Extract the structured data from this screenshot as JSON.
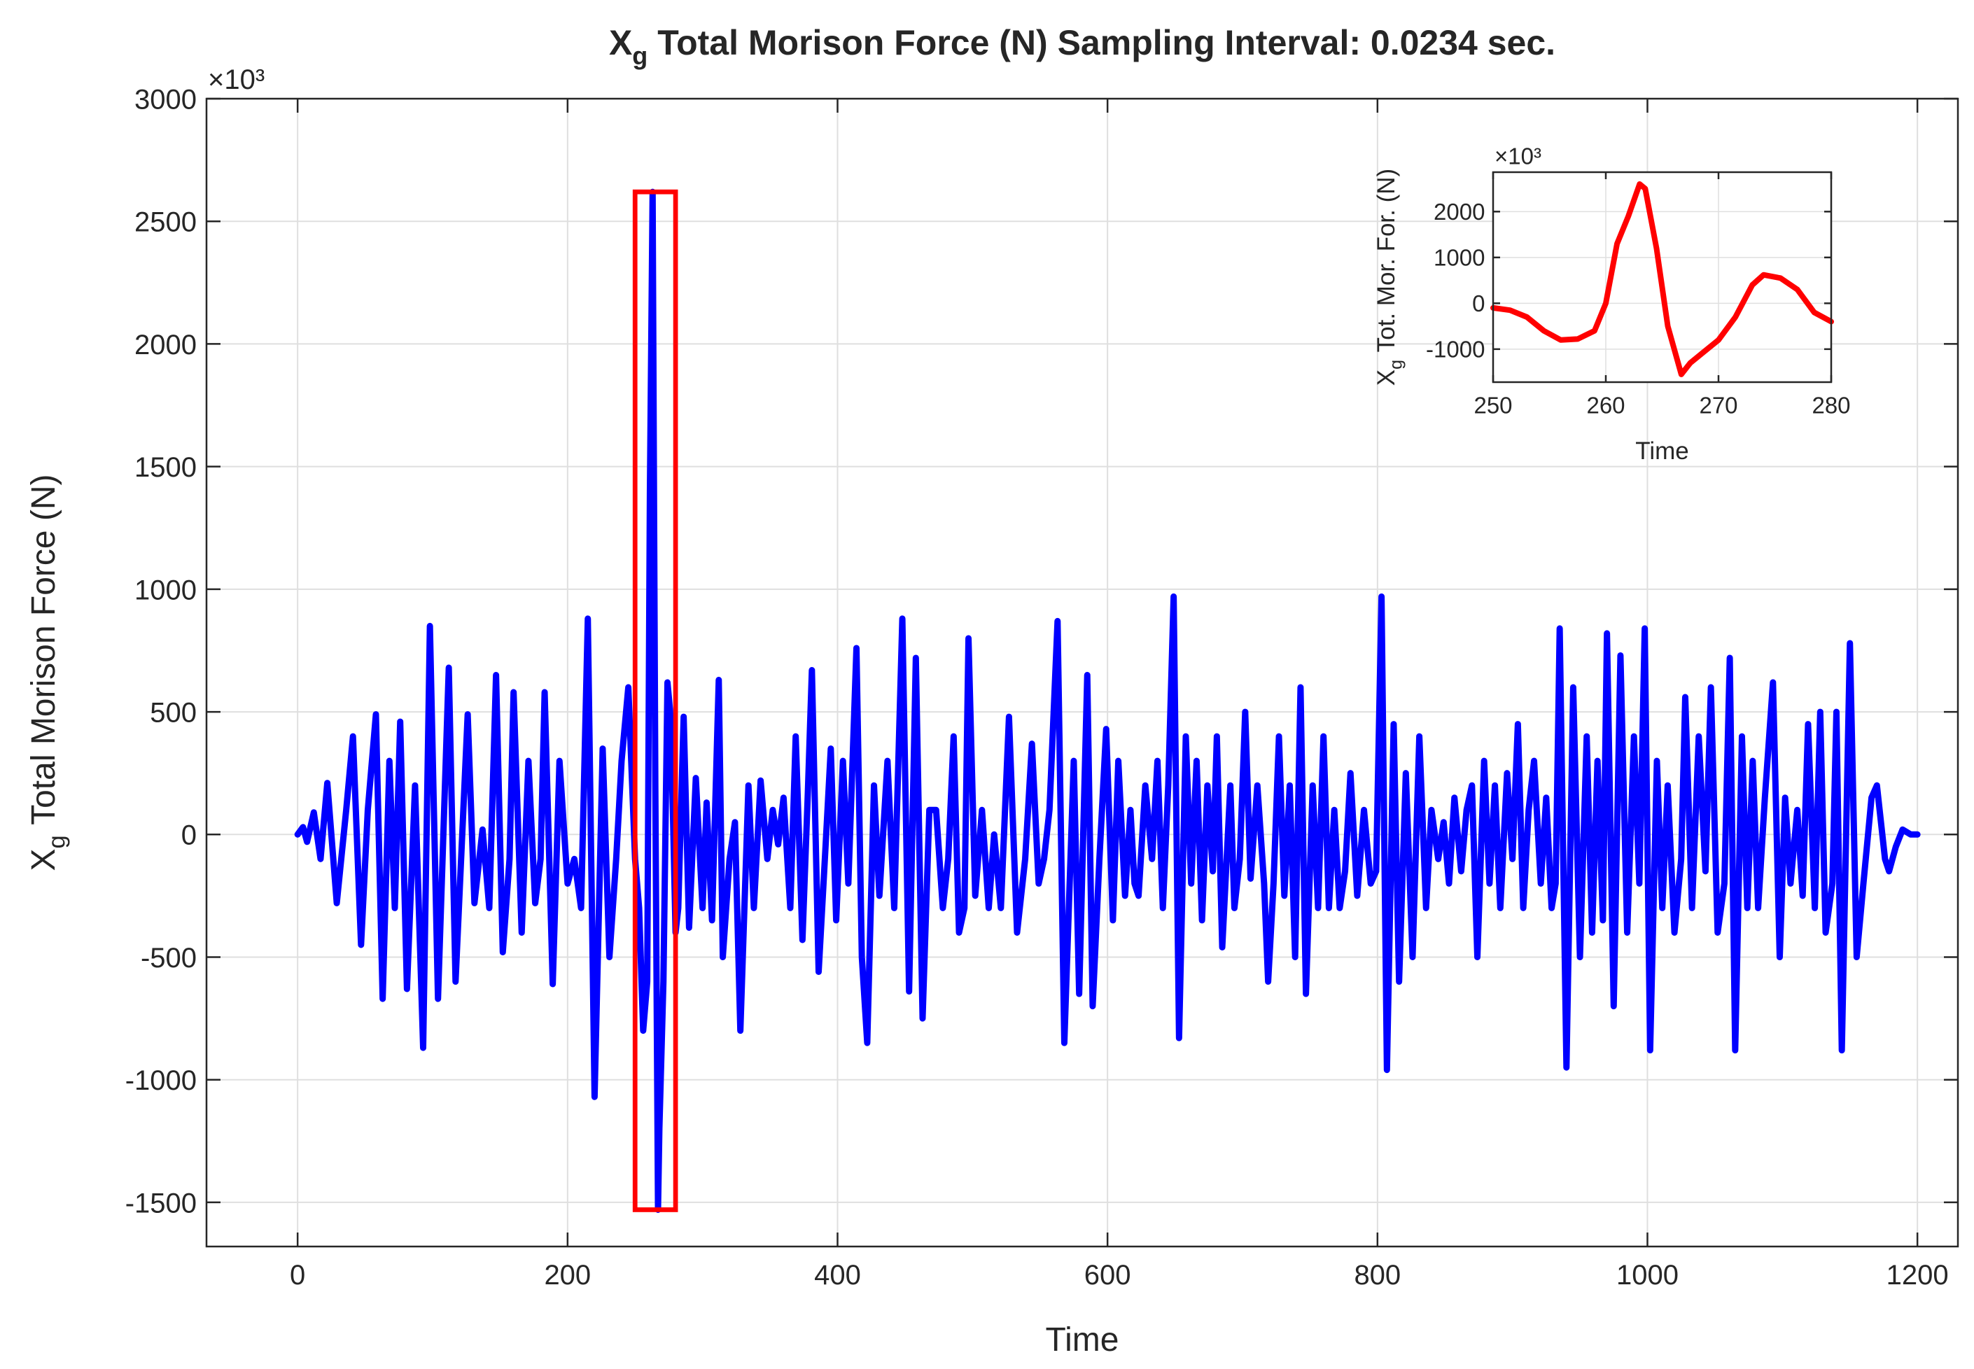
{
  "chart_data": [
    {
      "type": "line",
      "title_symbol": "X",
      "title_subscript": "g",
      "title": "Total Morison Force (N) Sampling Interval: 0.0234 sec.",
      "xlabel": "Time",
      "ylabel_symbol": "X",
      "ylabel_subscript": "g",
      "ylabel": "Total Morison Force (N)",
      "y_multiplier": "×10³",
      "xlim": [
        -67.5,
        1230
      ],
      "ylim": [
        -1680,
        3000
      ],
      "xticks": [
        0,
        200,
        400,
        600,
        800,
        1000,
        1200
      ],
      "yticks": [
        -1500,
        -1000,
        -500,
        0,
        500,
        1000,
        1500,
        2000,
        2500,
        3000
      ],
      "grid": true,
      "series": [
        {
          "color": "#0000ff",
          "x": [
            0,
            4,
            7,
            12,
            17,
            22,
            29,
            36,
            41,
            47,
            52,
            58,
            63,
            68,
            72,
            76,
            81,
            87,
            93,
            98,
            104,
            112,
            117,
            126,
            131,
            137,
            142,
            147,
            152,
            157,
            160,
            166,
            171,
            176,
            180,
            183,
            189,
            194,
            200,
            205,
            210,
            215,
            220,
            226,
            231,
            236,
            240,
            245,
            250,
            253,
            256,
            259,
            261,
            263,
            265,
            267,
            268,
            271,
            274,
            276,
            278,
            280,
            282,
            286,
            290,
            295,
            300,
            303,
            307,
            312,
            315,
            320,
            324,
            328,
            334,
            338,
            343,
            348,
            352,
            356,
            360,
            365,
            369,
            374,
            378,
            381,
            386,
            391,
            395,
            399,
            404,
            408,
            414,
            418,
            422,
            427,
            431,
            437,
            442,
            448,
            453,
            458,
            463,
            468,
            473,
            478,
            482,
            486,
            490,
            494,
            497,
            502,
            507,
            512,
            516,
            521,
            527,
            533,
            539,
            544,
            549,
            553,
            557,
            563,
            568,
            575,
            579,
            585,
            589,
            594,
            599,
            604,
            608,
            613,
            617,
            620,
            623,
            628,
            633,
            637,
            641,
            645,
            649,
            653,
            658,
            662,
            666,
            670,
            674,
            678,
            681,
            685,
            691,
            694,
            698,
            702,
            706,
            711,
            716,
            719,
            723,
            727,
            731,
            735,
            739,
            743,
            747,
            752,
            756,
            760,
            764,
            768,
            772,
            776,
            780,
            785,
            790,
            795,
            799,
            803,
            807,
            812,
            816,
            821,
            826,
            831,
            836,
            840,
            845,
            849,
            853,
            857,
            862,
            866,
            870,
            874,
            879,
            883,
            887,
            891,
            896,
            900,
            904,
            908,
            912,
            916,
            921,
            925,
            929,
            932,
            935,
            940,
            945,
            950,
            955,
            959,
            963,
            967,
            970,
            975,
            980,
            985,
            990,
            994,
            998,
            1002,
            1007,
            1011,
            1015,
            1020,
            1025,
            1028,
            1033,
            1038,
            1043,
            1047,
            1052,
            1057,
            1061,
            1065,
            1070,
            1074,
            1078,
            1082,
            1087,
            1093,
            1098,
            1102,
            1106,
            1111,
            1115,
            1119,
            1124,
            1128,
            1132,
            1137,
            1140,
            1144,
            1150,
            1155,
            1160,
            1166,
            1170,
            1176,
            1179,
            1184,
            1189,
            1195,
            1200
          ],
          "values": [
            0,
            30,
            -30,
            90,
            -100,
            210,
            -280,
            100,
            400,
            -450,
            100,
            490,
            -670,
            300,
            -300,
            460,
            -630,
            200,
            -870,
            850,
            -670,
            680,
            -600,
            490,
            -280,
            20,
            -300,
            650,
            -480,
            -100,
            580,
            -400,
            300,
            -280,
            -100,
            580,
            -610,
            300,
            -200,
            -100,
            -300,
            880,
            -1070,
            350,
            -500,
            -100,
            300,
            600,
            -100,
            -300,
            -800,
            -600,
            1400,
            2620,
            200,
            -1530,
            -1200,
            -600,
            620,
            500,
            100,
            -400,
            -300,
            480,
            -380,
            230,
            -300,
            130,
            -350,
            630,
            -500,
            -100,
            50,
            -800,
            200,
            -300,
            220,
            -100,
            100,
            -40,
            150,
            -300,
            400,
            -430,
            170,
            670,
            -560,
            -60,
            350,
            -350,
            300,
            -200,
            760,
            -500,
            -850,
            200,
            -250,
            300,
            -300,
            880,
            -640,
            720,
            -750,
            100,
            100,
            -300,
            -100,
            400,
            -400,
            -300,
            800,
            -250,
            100,
            -300,
            0,
            -300,
            480,
            -400,
            -100,
            370,
            -200,
            -100,
            100,
            870,
            -850,
            300,
            -650,
            650,
            -700,
            -100,
            430,
            -350,
            300,
            -250,
            100,
            -200,
            -250,
            200,
            -100,
            300,
            -300,
            200,
            970,
            -830,
            400,
            -200,
            300,
            -350,
            200,
            -150,
            400,
            -460,
            200,
            -300,
            -100,
            500,
            -180,
            200,
            -200,
            -600,
            -200,
            400,
            -250,
            200,
            -500,
            600,
            -650,
            200,
            -300,
            400,
            -300,
            100,
            -300,
            -150,
            250,
            -250,
            100,
            -200,
            -150,
            970,
            -960,
            450,
            -600,
            250,
            -500,
            400,
            -300,
            100,
            -100,
            50,
            -200,
            150,
            -150,
            100,
            200,
            -500,
            300,
            -200,
            200,
            -300,
            250,
            -100,
            450,
            -300,
            100,
            300,
            -200,
            150,
            -300,
            -200,
            840,
            -950,
            600,
            -500,
            400,
            -400,
            300,
            -350,
            820,
            -700,
            730,
            -400,
            400,
            -200,
            840,
            -880,
            300,
            -300,
            200,
            -400,
            -100,
            560,
            -300,
            400,
            -150,
            600,
            -400,
            -200,
            720,
            -880,
            400,
            -300,
            300,
            -300,
            150,
            620,
            -500,
            150,
            -200,
            100,
            -250,
            450,
            -300,
            500,
            -400,
            -200,
            500,
            -880,
            780,
            -500,
            -200,
            150,
            200,
            -100,
            -150,
            -50,
            20,
            0,
            0
          ]
        }
      ],
      "highlight_box": {
        "x": [
          250,
          280
        ],
        "y": [
          -1530,
          2620
        ],
        "color": "#ff0000"
      }
    },
    {
      "type": "line",
      "xlabel": "Time",
      "ylabel_symbol": "X",
      "ylabel_subscript": "g",
      "ylabel": "Tot. Mor. For. (N)",
      "y_multiplier": "×10³",
      "xlim": [
        250,
        280
      ],
      "ylim": [
        -1720,
        2860
      ],
      "xticks": [
        250,
        260,
        270,
        280
      ],
      "yticks": [
        -1000,
        0,
        1000,
        2000
      ],
      "grid": true,
      "series": [
        {
          "color": "#ff0000",
          "x": [
            250,
            251.5,
            253,
            254.5,
            256,
            257.5,
            259,
            260,
            261,
            262,
            263,
            263.5,
            264.5,
            265.5,
            266.7,
            267.5,
            268.5,
            270,
            271.5,
            273,
            274,
            275.5,
            277,
            278.5,
            280
          ],
          "values": [
            -100,
            -150,
            -300,
            -600,
            -800,
            -780,
            -600,
            0,
            1300,
            1900,
            2600,
            2500,
            1200,
            -500,
            -1550,
            -1300,
            -1100,
            -800,
            -300,
            400,
            620,
            550,
            300,
            -200,
            -400
          ]
        }
      ]
    }
  ]
}
